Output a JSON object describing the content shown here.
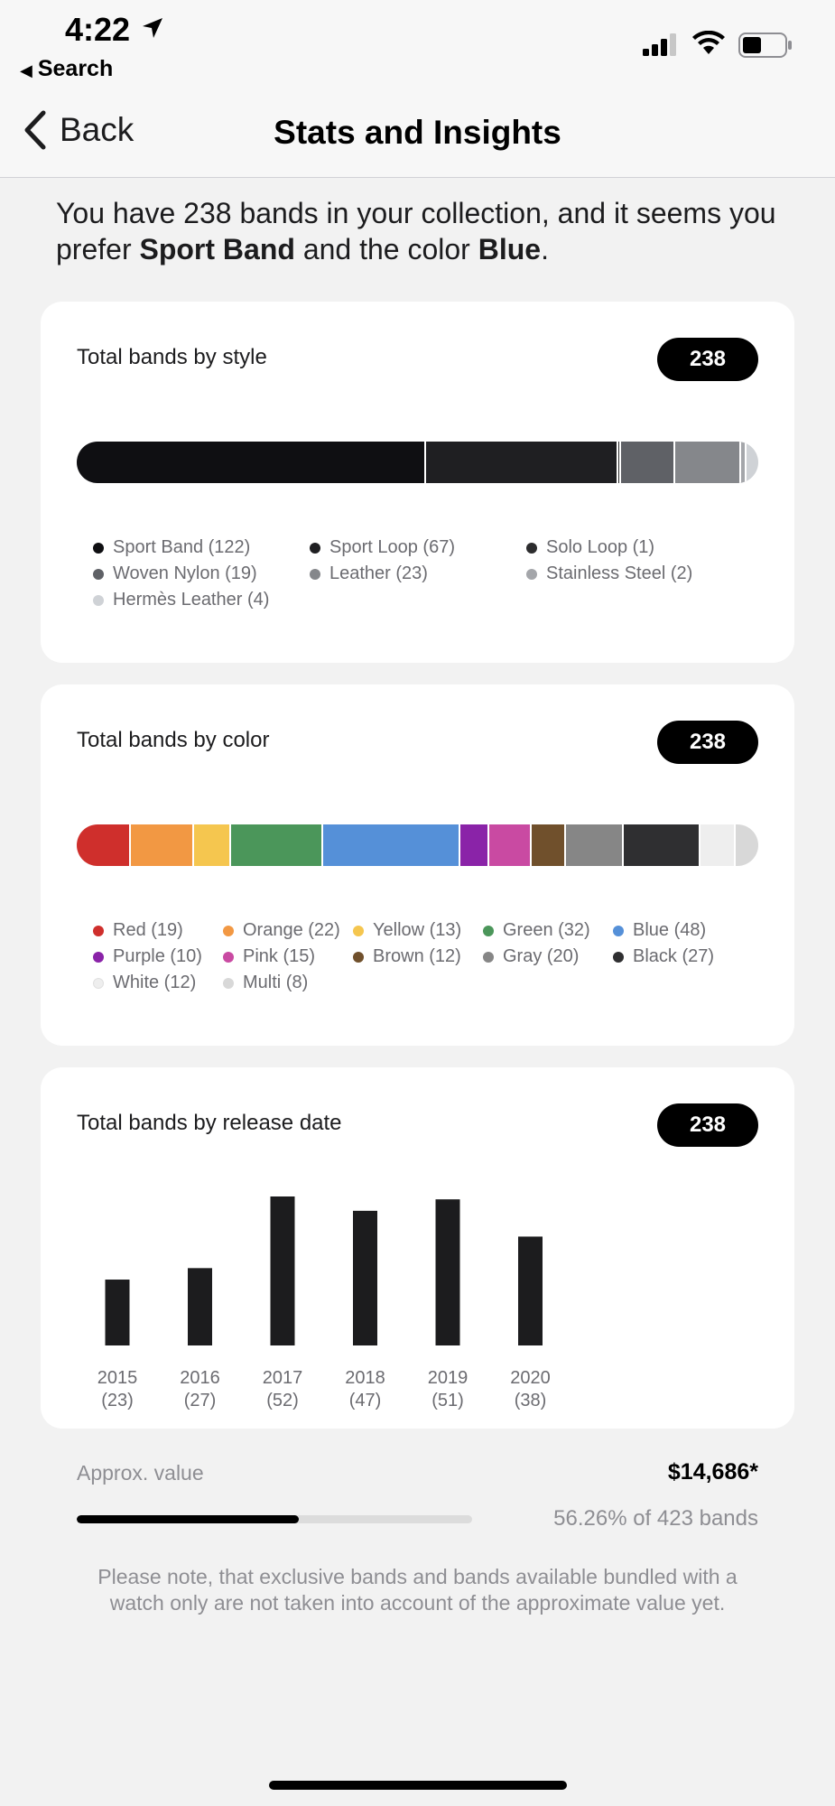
{
  "status_bar": {
    "time": "4:22",
    "back_app_label": "Search"
  },
  "nav": {
    "back_label": "Back",
    "title": "Stats and Insights"
  },
  "summary": {
    "part1": "You have 238 bands in your collection, and it seems you prefer ",
    "style": "Sport Band",
    "part2": " and the color ",
    "color": "Blue",
    "part3": "."
  },
  "style_card": {
    "title": "Total bands by style",
    "count": "238",
    "items": [
      {
        "label": "Sport Band (122)",
        "value": 122,
        "color": "#0f0f12"
      },
      {
        "label": "Sport Loop (67)",
        "value": 67,
        "color": "#1f1f22"
      },
      {
        "label": "Solo Loop (1)",
        "value": 1,
        "color": "#2c2c2e"
      },
      {
        "label": "Woven Nylon (19)",
        "value": 19,
        "color": "#5f6166"
      },
      {
        "label": "Leather (23)",
        "value": 23,
        "color": "#85878b"
      },
      {
        "label": "Stainless Steel (2)",
        "value": 2,
        "color": "#a4a6aa"
      },
      {
        "label": "Hermès Leather (4)",
        "value": 4,
        "color": "#cfd2d6"
      }
    ]
  },
  "color_card": {
    "title": "Total bands by color",
    "count": "238",
    "items": [
      {
        "label": "Red (19)",
        "value": 19,
        "color": "#cf2f2c"
      },
      {
        "label": "Orange (22)",
        "value": 22,
        "color": "#f29843"
      },
      {
        "label": "Yellow (13)",
        "value": 13,
        "color": "#f5c64f"
      },
      {
        "label": "Green (32)",
        "value": 32,
        "color": "#4b965a"
      },
      {
        "label": "Blue (48)",
        "value": 48,
        "color": "#5590d8"
      },
      {
        "label": "Purple (10)",
        "value": 10,
        "color": "#8a23a8"
      },
      {
        "label": "Pink (15)",
        "value": 15,
        "color": "#c94aa2"
      },
      {
        "label": "Brown (12)",
        "value": 12,
        "color": "#70502c"
      },
      {
        "label": "Gray (20)",
        "value": 20,
        "color": "#868686"
      },
      {
        "label": "Black (27)",
        "value": 27,
        "color": "#2f2f31"
      },
      {
        "label": "White (12)",
        "value": 12,
        "color": "#eeeeee"
      },
      {
        "label": "Multi (8)",
        "value": 8,
        "color": "#d8d8d8"
      }
    ]
  },
  "release_card": {
    "title": "Total bands by release date",
    "count": "238"
  },
  "chart_data": {
    "type": "bar",
    "categories": [
      "2015",
      "2016",
      "2017",
      "2018",
      "2019",
      "2020"
    ],
    "values": [
      23,
      27,
      52,
      47,
      51,
      38
    ],
    "tick_labels": [
      [
        "2015",
        "(23)"
      ],
      [
        "2016",
        "(27)"
      ],
      [
        "2017",
        "(52)"
      ],
      [
        "2018",
        "(47)"
      ],
      [
        "2019",
        "(51)"
      ],
      [
        "2020",
        "(38)"
      ]
    ],
    "title": "Total bands by release date",
    "bar_color": "#1c1c1e",
    "grid": false
  },
  "approx": {
    "label": "Approx. value",
    "value": "$14,686*",
    "progress_fraction": 0.5626,
    "progress_text": "56.26% of 423 bands",
    "note": "Please note, that exclusive bands and bands available bundled with a watch only are not taken into account of the approximate value yet."
  }
}
